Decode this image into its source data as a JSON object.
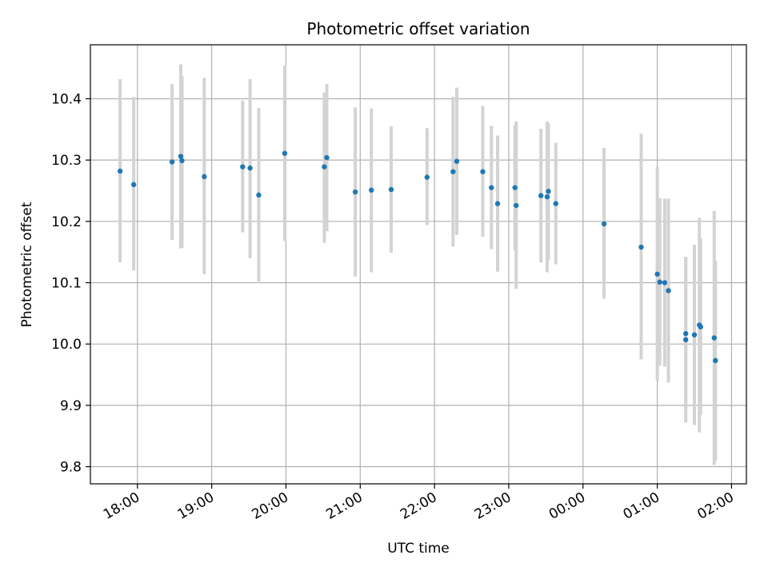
{
  "chart_data": {
    "type": "scatter",
    "title": "Photometric offset variation",
    "xlabel": "UTC time",
    "ylabel": "Photometric offset",
    "x_unit": "UTC time (HH:MM)",
    "xlim": [
      "17:22",
      "02:12"
    ],
    "ylim": [
      9.772,
      10.488
    ],
    "x_ticks": [
      "18:00",
      "19:00",
      "20:00",
      "21:00",
      "22:00",
      "23:00",
      "00:00",
      "01:00",
      "02:00"
    ],
    "y_ticks": [
      9.8,
      9.9,
      10.0,
      10.1,
      10.2,
      10.3,
      10.4
    ],
    "y_tick_labels": [
      "9.8",
      "9.9",
      "10.0",
      "10.1",
      "10.2",
      "10.3",
      "10.4"
    ],
    "grid": true,
    "legend": "none",
    "colors": {
      "points": "#1f77b4",
      "errorbars": "#d3d3d3",
      "grid": "#b0b0b0",
      "axes": "#000000"
    },
    "points": [
      {
        "t": "17:46",
        "y": 10.282,
        "lo": 10.133,
        "hi": 10.432
      },
      {
        "t": "17:57",
        "y": 10.26,
        "lo": 10.12,
        "hi": 10.403
      },
      {
        "t": "18:28",
        "y": 10.297,
        "lo": 10.17,
        "hi": 10.424
      },
      {
        "t": "18:35",
        "y": 10.306,
        "lo": 10.156,
        "hi": 10.456
      },
      {
        "t": "18:36",
        "y": 10.299,
        "lo": 10.157,
        "hi": 10.437
      },
      {
        "t": "18:54",
        "y": 10.273,
        "lo": 10.114,
        "hi": 10.434
      },
      {
        "t": "19:25",
        "y": 10.289,
        "lo": 10.182,
        "hi": 10.397
      },
      {
        "t": "19:31",
        "y": 10.287,
        "lo": 10.14,
        "hi": 10.432
      },
      {
        "t": "19:38",
        "y": 10.243,
        "lo": 10.102,
        "hi": 10.385
      },
      {
        "t": "19:59",
        "y": 10.311,
        "lo": 10.168,
        "hi": 10.454
      },
      {
        "t": "20:31",
        "y": 10.289,
        "lo": 10.165,
        "hi": 10.41
      },
      {
        "t": "20:33",
        "y": 10.304,
        "lo": 10.184,
        "hi": 10.424
      },
      {
        "t": "20:56",
        "y": 10.248,
        "lo": 10.11,
        "hi": 10.386
      },
      {
        "t": "21:09",
        "y": 10.251,
        "lo": 10.117,
        "hi": 10.384
      },
      {
        "t": "21:25",
        "y": 10.252,
        "lo": 10.149,
        "hi": 10.355
      },
      {
        "t": "21:54",
        "y": 10.272,
        "lo": 10.194,
        "hi": 10.352
      },
      {
        "t": "22:15",
        "y": 10.281,
        "lo": 10.159,
        "hi": 10.403
      },
      {
        "t": "22:18",
        "y": 10.298,
        "lo": 10.178,
        "hi": 10.418
      },
      {
        "t": "22:39",
        "y": 10.281,
        "lo": 10.175,
        "hi": 10.388
      },
      {
        "t": "22:46",
        "y": 10.255,
        "lo": 10.155,
        "hi": 10.356
      },
      {
        "t": "22:51",
        "y": 10.229,
        "lo": 10.118,
        "hi": 10.34
      },
      {
        "t": "23:05",
        "y": 10.255,
        "lo": 10.153,
        "hi": 10.357
      },
      {
        "t": "23:06",
        "y": 10.226,
        "lo": 10.09,
        "hi": 10.363
      },
      {
        "t": "23:26",
        "y": 10.242,
        "lo": 10.133,
        "hi": 10.351
      },
      {
        "t": "23:31",
        "y": 10.24,
        "lo": 10.117,
        "hi": 10.363
      },
      {
        "t": "23:32",
        "y": 10.249,
        "lo": 10.137,
        "hi": 10.36
      },
      {
        "t": "23:38",
        "y": 10.229,
        "lo": 10.13,
        "hi": 10.328
      },
      {
        "t": "00:17",
        "y": 10.196,
        "lo": 10.074,
        "hi": 10.32
      },
      {
        "t": "00:47",
        "y": 10.158,
        "lo": 9.975,
        "hi": 10.343
      },
      {
        "t": "01:00",
        "y": 10.114,
        "lo": 9.94,
        "hi": 10.289
      },
      {
        "t": "01:02",
        "y": 10.101,
        "lo": 9.965,
        "hi": 10.238
      },
      {
        "t": "01:06",
        "y": 10.1,
        "lo": 9.963,
        "hi": 10.237
      },
      {
        "t": "01:09",
        "y": 10.087,
        "lo": 9.937,
        "hi": 10.237
      },
      {
        "t": "01:23",
        "y": 10.017,
        "lo": 9.892,
        "hi": 10.142
      },
      {
        "t": "01:23",
        "y": 10.007,
        "lo": 9.872,
        "hi": 10.142
      },
      {
        "t": "01:30",
        "y": 10.015,
        "lo": 9.868,
        "hi": 10.162
      },
      {
        "t": "01:34",
        "y": 10.031,
        "lo": 9.856,
        "hi": 10.206
      },
      {
        "t": "01:35",
        "y": 10.028,
        "lo": 9.884,
        "hi": 10.172
      },
      {
        "t": "01:46",
        "y": 10.01,
        "lo": 9.803,
        "hi": 10.217
      },
      {
        "t": "01:47",
        "y": 9.973,
        "lo": 9.81,
        "hi": 10.136
      }
    ]
  }
}
